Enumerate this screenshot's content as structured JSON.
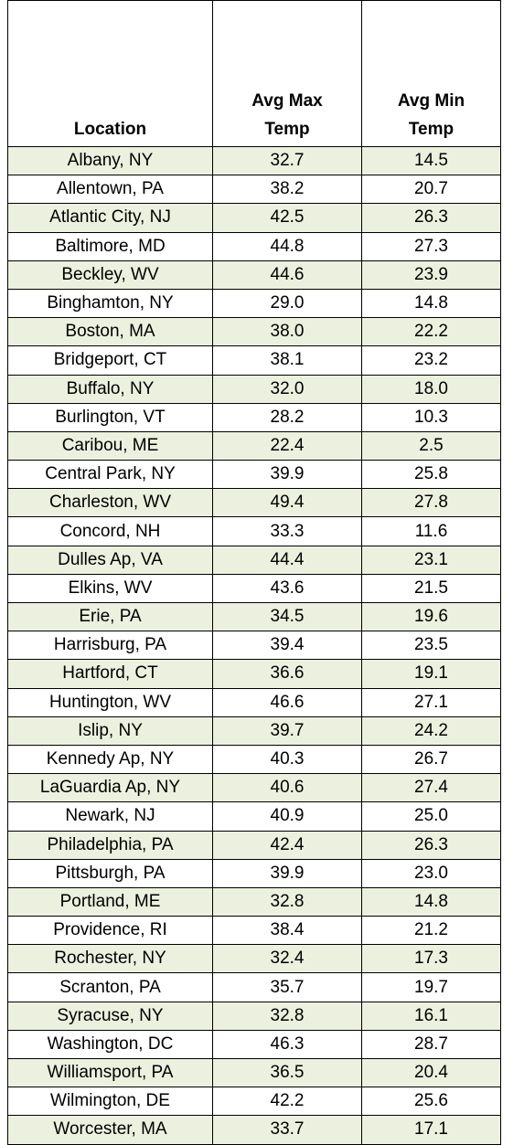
{
  "table": {
    "header": [
      "Location",
      "Avg Max Temp",
      "Avg Min Temp"
    ],
    "rows": [
      [
        "Albany, NY",
        "32.7",
        "14.5"
      ],
      [
        "Allentown, PA",
        "38.2",
        "20.7"
      ],
      [
        "Atlantic City, NJ",
        "42.5",
        "26.3"
      ],
      [
        "Baltimore, MD",
        "44.8",
        "27.3"
      ],
      [
        "Beckley, WV",
        "44.6",
        "23.9"
      ],
      [
        "Binghamton, NY",
        "29.0",
        "14.8"
      ],
      [
        "Boston, MA",
        "38.0",
        "22.2"
      ],
      [
        "Bridgeport, CT",
        "38.1",
        "23.2"
      ],
      [
        "Buffalo, NY",
        "32.0",
        "18.0"
      ],
      [
        "Burlington, VT",
        "28.2",
        "10.3"
      ],
      [
        "Caribou, ME",
        "22.4",
        "2.5"
      ],
      [
        "Central Park, NY",
        "39.9",
        "25.8"
      ],
      [
        "Charleston, WV",
        "49.4",
        "27.8"
      ],
      [
        "Concord, NH",
        "33.3",
        "11.6"
      ],
      [
        "Dulles Ap, VA",
        "44.4",
        "23.1"
      ],
      [
        "Elkins, WV",
        "43.6",
        "21.5"
      ],
      [
        "Erie, PA",
        "34.5",
        "19.6"
      ],
      [
        "Harrisburg, PA",
        "39.4",
        "23.5"
      ],
      [
        "Hartford, CT",
        "36.6",
        "19.1"
      ],
      [
        "Huntington, WV",
        "46.6",
        "27.1"
      ],
      [
        "Islip, NY",
        "39.7",
        "24.2"
      ],
      [
        "Kennedy Ap, NY",
        "40.3",
        "26.7"
      ],
      [
        "LaGuardia Ap, NY",
        "40.6",
        "27.4"
      ],
      [
        "Newark, NJ",
        "40.9",
        "25.0"
      ],
      [
        "Philadelphia, PA",
        "42.4",
        "26.3"
      ],
      [
        "Pittsburgh, PA",
        "39.9",
        "23.0"
      ],
      [
        "Portland, ME",
        "32.8",
        "14.8"
      ],
      [
        "Providence, RI",
        "38.4",
        "21.2"
      ],
      [
        "Rochester, NY",
        "32.4",
        "17.3"
      ],
      [
        "Scranton, PA",
        "35.7",
        "19.7"
      ],
      [
        "Syracuse, NY",
        "32.8",
        "16.1"
      ],
      [
        "Washington, DC",
        "46.3",
        "28.7"
      ],
      [
        "Williamsport, PA",
        "36.5",
        "20.4"
      ],
      [
        "Wilmington, DE",
        "42.2",
        "25.6"
      ],
      [
        "Worcester, MA",
        "33.7",
        "17.1"
      ]
    ]
  }
}
